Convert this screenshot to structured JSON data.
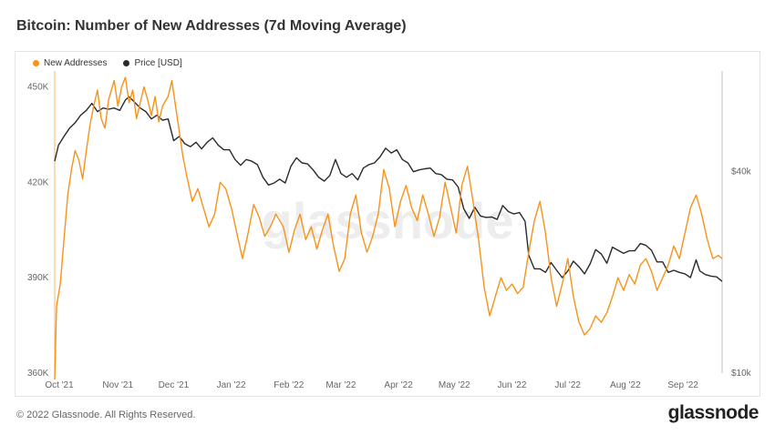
{
  "page": {
    "title": "Bitcoin: Number of New Addresses (7d Moving Average)",
    "copyright": "© 2022 Glassnode. All Rights Reserved.",
    "brand": "glassnode",
    "watermark": "glassnode"
  },
  "chart_data": {
    "type": "line",
    "title": "Bitcoin: Number of New Addresses (7d Moving Average)",
    "legend": {
      "placement": "top-left",
      "entries": [
        "New Addresses",
        "Price [USD]"
      ]
    },
    "colors": {
      "new_addresses": "#f7931a",
      "price": "#2a2a2a"
    },
    "grid": false,
    "x_ticks": [
      "Oct '21",
      "Nov '21",
      "Dec '21",
      "Jan '22",
      "Feb '22",
      "Mar '22",
      "Apr '22",
      "May '22",
      "Jun '22",
      "Jul '22",
      "Aug '22",
      "Sep '22"
    ],
    "x_range": [
      "2021-10-01",
      "2022-09-25"
    ],
    "y_left": {
      "label": "",
      "ticks": [
        "360K",
        "390K",
        "420K",
        "450K"
      ],
      "range": [
        360000,
        455000
      ]
    },
    "y_right": {
      "label": "",
      "scale": "log",
      "ticks": [
        "$10k",
        "$40k"
      ],
      "range": [
        10000,
        80000
      ]
    },
    "series": [
      {
        "name": "New Addresses",
        "axis": "left",
        "points": [
          [
            "2021-10-01",
            358000
          ],
          [
            "2021-10-02",
            381000
          ],
          [
            "2021-10-04",
            388000
          ],
          [
            "2021-10-06",
            402000
          ],
          [
            "2021-10-08",
            416000
          ],
          [
            "2021-10-10",
            424000
          ],
          [
            "2021-10-12",
            430000
          ],
          [
            "2021-10-14",
            427000
          ],
          [
            "2021-10-16",
            421000
          ],
          [
            "2021-10-18",
            430000
          ],
          [
            "2021-10-20",
            438000
          ],
          [
            "2021-10-22",
            444000
          ],
          [
            "2021-10-24",
            449000
          ],
          [
            "2021-10-26",
            440000
          ],
          [
            "2021-10-28",
            437000
          ],
          [
            "2021-10-30",
            446000
          ],
          [
            "2021-11-02",
            452000
          ],
          [
            "2021-11-04",
            444000
          ],
          [
            "2021-11-06",
            450000
          ],
          [
            "2021-11-08",
            453000
          ],
          [
            "2021-11-10",
            445000
          ],
          [
            "2021-11-12",
            449000
          ],
          [
            "2021-11-14",
            440000
          ],
          [
            "2021-11-16",
            445000
          ],
          [
            "2021-11-18",
            450000
          ],
          [
            "2021-11-20",
            446000
          ],
          [
            "2021-11-22",
            441000
          ],
          [
            "2021-11-24",
            447000
          ],
          [
            "2021-11-26",
            439000
          ],
          [
            "2021-11-28",
            444000
          ],
          [
            "2021-12-01",
            447000
          ],
          [
            "2021-12-03",
            452000
          ],
          [
            "2021-12-05",
            444000
          ],
          [
            "2021-12-07",
            436000
          ],
          [
            "2021-12-09",
            428000
          ],
          [
            "2021-12-11",
            422000
          ],
          [
            "2021-12-14",
            414000
          ],
          [
            "2021-12-17",
            418000
          ],
          [
            "2021-12-20",
            412000
          ],
          [
            "2021-12-23",
            406000
          ],
          [
            "2021-12-26",
            410000
          ],
          [
            "2021-12-29",
            420000
          ],
          [
            "2022-01-01",
            418000
          ],
          [
            "2022-01-04",
            412000
          ],
          [
            "2022-01-07",
            404000
          ],
          [
            "2022-01-10",
            396000
          ],
          [
            "2022-01-13",
            404000
          ],
          [
            "2022-01-16",
            413000
          ],
          [
            "2022-01-19",
            409000
          ],
          [
            "2022-01-22",
            403000
          ],
          [
            "2022-01-25",
            406000
          ],
          [
            "2022-01-28",
            410000
          ],
          [
            "2022-02-01",
            406000
          ],
          [
            "2022-02-04",
            398000
          ],
          [
            "2022-02-07",
            405000
          ],
          [
            "2022-02-10",
            410000
          ],
          [
            "2022-02-13",
            402000
          ],
          [
            "2022-02-16",
            406000
          ],
          [
            "2022-02-19",
            399000
          ],
          [
            "2022-02-22",
            405000
          ],
          [
            "2022-02-25",
            410000
          ],
          [
            "2022-02-28",
            400000
          ],
          [
            "2022-03-03",
            392000
          ],
          [
            "2022-03-06",
            396000
          ],
          [
            "2022-03-09",
            410000
          ],
          [
            "2022-03-12",
            416000
          ],
          [
            "2022-03-15",
            404000
          ],
          [
            "2022-03-18",
            398000
          ],
          [
            "2022-03-21",
            403000
          ],
          [
            "2022-03-24",
            410000
          ],
          [
            "2022-03-27",
            424000
          ],
          [
            "2022-03-30",
            418000
          ],
          [
            "2022-04-02",
            406000
          ],
          [
            "2022-04-05",
            414000
          ],
          [
            "2022-04-08",
            419000
          ],
          [
            "2022-04-11",
            412000
          ],
          [
            "2022-04-14",
            408000
          ],
          [
            "2022-04-17",
            416000
          ],
          [
            "2022-04-20",
            410000
          ],
          [
            "2022-04-23",
            403000
          ],
          [
            "2022-04-26",
            409000
          ],
          [
            "2022-04-29",
            420000
          ],
          [
            "2022-05-02",
            412000
          ],
          [
            "2022-05-05",
            404000
          ],
          [
            "2022-05-08",
            419000
          ],
          [
            "2022-05-11",
            425000
          ],
          [
            "2022-05-14",
            414000
          ],
          [
            "2022-05-17",
            402000
          ],
          [
            "2022-05-20",
            387000
          ],
          [
            "2022-05-23",
            378000
          ],
          [
            "2022-05-26",
            384000
          ],
          [
            "2022-05-29",
            390000
          ],
          [
            "2022-06-01",
            386000
          ],
          [
            "2022-06-04",
            388000
          ],
          [
            "2022-06-07",
            385000
          ],
          [
            "2022-06-10",
            387000
          ],
          [
            "2022-06-13",
            398000
          ],
          [
            "2022-06-16",
            408000
          ],
          [
            "2022-06-19",
            414000
          ],
          [
            "2022-06-22",
            404000
          ],
          [
            "2022-06-25",
            390000
          ],
          [
            "2022-06-28",
            381000
          ],
          [
            "2022-07-01",
            388000
          ],
          [
            "2022-07-04",
            396000
          ],
          [
            "2022-07-07",
            384000
          ],
          [
            "2022-07-10",
            376000
          ],
          [
            "2022-07-13",
            372000
          ],
          [
            "2022-07-16",
            374000
          ],
          [
            "2022-07-19",
            378000
          ],
          [
            "2022-07-22",
            376000
          ],
          [
            "2022-07-25",
            379000
          ],
          [
            "2022-07-28",
            384000
          ],
          [
            "2022-07-31",
            390000
          ],
          [
            "2022-08-03",
            386000
          ],
          [
            "2022-08-06",
            391000
          ],
          [
            "2022-08-09",
            388000
          ],
          [
            "2022-08-12",
            394000
          ],
          [
            "2022-08-15",
            396000
          ],
          [
            "2022-08-18",
            392000
          ],
          [
            "2022-08-21",
            386000
          ],
          [
            "2022-08-24",
            390000
          ],
          [
            "2022-08-27",
            394000
          ],
          [
            "2022-08-30",
            400000
          ],
          [
            "2022-09-02",
            396000
          ],
          [
            "2022-09-05",
            404000
          ],
          [
            "2022-09-08",
            412000
          ],
          [
            "2022-09-11",
            416000
          ],
          [
            "2022-09-14",
            410000
          ],
          [
            "2022-09-17",
            402000
          ],
          [
            "2022-09-20",
            396000
          ],
          [
            "2022-09-23",
            397000
          ],
          [
            "2022-09-25",
            396000
          ]
        ]
      },
      {
        "name": "Price [USD]",
        "axis": "right",
        "points": [
          [
            "2021-10-01",
            43000
          ],
          [
            "2021-10-03",
            48000
          ],
          [
            "2021-10-06",
            51000
          ],
          [
            "2021-10-09",
            54000
          ],
          [
            "2021-10-12",
            56000
          ],
          [
            "2021-10-15",
            59000
          ],
          [
            "2021-10-18",
            61000
          ],
          [
            "2021-10-21",
            64000
          ],
          [
            "2021-10-24",
            60500
          ],
          [
            "2021-10-27",
            62000
          ],
          [
            "2021-10-30",
            61500
          ],
          [
            "2021-11-02",
            62000
          ],
          [
            "2021-11-05",
            61000
          ],
          [
            "2021-11-08",
            65500
          ],
          [
            "2021-11-10",
            67000
          ],
          [
            "2021-11-13",
            64500
          ],
          [
            "2021-11-16",
            62000
          ],
          [
            "2021-11-19",
            60500
          ],
          [
            "2021-11-22",
            57500
          ],
          [
            "2021-11-25",
            59000
          ],
          [
            "2021-11-28",
            57000
          ],
          [
            "2021-12-01",
            57500
          ],
          [
            "2021-12-04",
            49500
          ],
          [
            "2021-12-07",
            51000
          ],
          [
            "2021-12-10",
            48500
          ],
          [
            "2021-12-13",
            47500
          ],
          [
            "2021-12-16",
            49000
          ],
          [
            "2021-12-19",
            46800
          ],
          [
            "2021-12-22",
            49000
          ],
          [
            "2021-12-25",
            50500
          ],
          [
            "2021-12-28",
            48000
          ],
          [
            "2021-12-31",
            46500
          ],
          [
            "2022-01-03",
            46500
          ],
          [
            "2022-01-06",
            43500
          ],
          [
            "2022-01-09",
            41800
          ],
          [
            "2022-01-12",
            43500
          ],
          [
            "2022-01-15",
            43000
          ],
          [
            "2022-01-18",
            42000
          ],
          [
            "2022-01-21",
            38500
          ],
          [
            "2022-01-24",
            36500
          ],
          [
            "2022-01-27",
            37000
          ],
          [
            "2022-01-30",
            38000
          ],
          [
            "2022-02-02",
            37000
          ],
          [
            "2022-02-05",
            41500
          ],
          [
            "2022-02-08",
            44000
          ],
          [
            "2022-02-11",
            42500
          ],
          [
            "2022-02-14",
            42200
          ],
          [
            "2022-02-17",
            40500
          ],
          [
            "2022-02-20",
            38500
          ],
          [
            "2022-02-23",
            37500
          ],
          [
            "2022-02-26",
            39000
          ],
          [
            "2022-03-01",
            43500
          ],
          [
            "2022-03-04",
            39500
          ],
          [
            "2022-03-07",
            38500
          ],
          [
            "2022-03-10",
            39500
          ],
          [
            "2022-03-13",
            37800
          ],
          [
            "2022-03-16",
            41000
          ],
          [
            "2022-03-19",
            42000
          ],
          [
            "2022-03-22",
            42500
          ],
          [
            "2022-03-25",
            44300
          ],
          [
            "2022-03-28",
            47000
          ],
          [
            "2022-03-31",
            45500
          ],
          [
            "2022-04-03",
            46500
          ],
          [
            "2022-04-06",
            43500
          ],
          [
            "2022-04-09",
            42500
          ],
          [
            "2022-04-12",
            40000
          ],
          [
            "2022-04-15",
            40500
          ],
          [
            "2022-04-18",
            40800
          ],
          [
            "2022-04-21",
            41000
          ],
          [
            "2022-04-24",
            39500
          ],
          [
            "2022-04-27",
            39200
          ],
          [
            "2022-04-30",
            38000
          ],
          [
            "2022-05-03",
            37800
          ],
          [
            "2022-05-06",
            36000
          ],
          [
            "2022-05-09",
            31000
          ],
          [
            "2022-05-12",
            29000
          ],
          [
            "2022-05-15",
            31300
          ],
          [
            "2022-05-18",
            29500
          ],
          [
            "2022-05-21",
            29200
          ],
          [
            "2022-05-24",
            29300
          ],
          [
            "2022-05-27",
            28800
          ],
          [
            "2022-05-30",
            31700
          ],
          [
            "2022-06-02",
            30400
          ],
          [
            "2022-06-05",
            29900
          ],
          [
            "2022-06-08",
            30200
          ],
          [
            "2022-06-11",
            28400
          ],
          [
            "2022-06-13",
            22500
          ],
          [
            "2022-06-16",
            20500
          ],
          [
            "2022-06-19",
            20500
          ],
          [
            "2022-06-22",
            20000
          ],
          [
            "2022-06-25",
            21400
          ],
          [
            "2022-06-28",
            20300
          ],
          [
            "2022-07-01",
            19300
          ],
          [
            "2022-07-04",
            20200
          ],
          [
            "2022-07-07",
            21600
          ],
          [
            "2022-07-10",
            20800
          ],
          [
            "2022-07-13",
            19800
          ],
          [
            "2022-07-16",
            21200
          ],
          [
            "2022-07-19",
            23400
          ],
          [
            "2022-07-22",
            22700
          ],
          [
            "2022-07-25",
            21300
          ],
          [
            "2022-07-28",
            23800
          ],
          [
            "2022-07-31",
            23300
          ],
          [
            "2022-08-03",
            22800
          ],
          [
            "2022-08-06",
            23200
          ],
          [
            "2022-08-09",
            23200
          ],
          [
            "2022-08-12",
            24400
          ],
          [
            "2022-08-15",
            24100
          ],
          [
            "2022-08-18",
            23300
          ],
          [
            "2022-08-21",
            21500
          ],
          [
            "2022-08-24",
            21500
          ],
          [
            "2022-08-27",
            20000
          ],
          [
            "2022-08-30",
            20300
          ],
          [
            "2022-09-02",
            20000
          ],
          [
            "2022-09-05",
            19800
          ],
          [
            "2022-09-08",
            19300
          ],
          [
            "2022-09-11",
            21800
          ],
          [
            "2022-09-13",
            20200
          ],
          [
            "2022-09-16",
            19700
          ],
          [
            "2022-09-19",
            19500
          ],
          [
            "2022-09-22",
            19400
          ],
          [
            "2022-09-25",
            18800
          ]
        ]
      }
    ]
  }
}
